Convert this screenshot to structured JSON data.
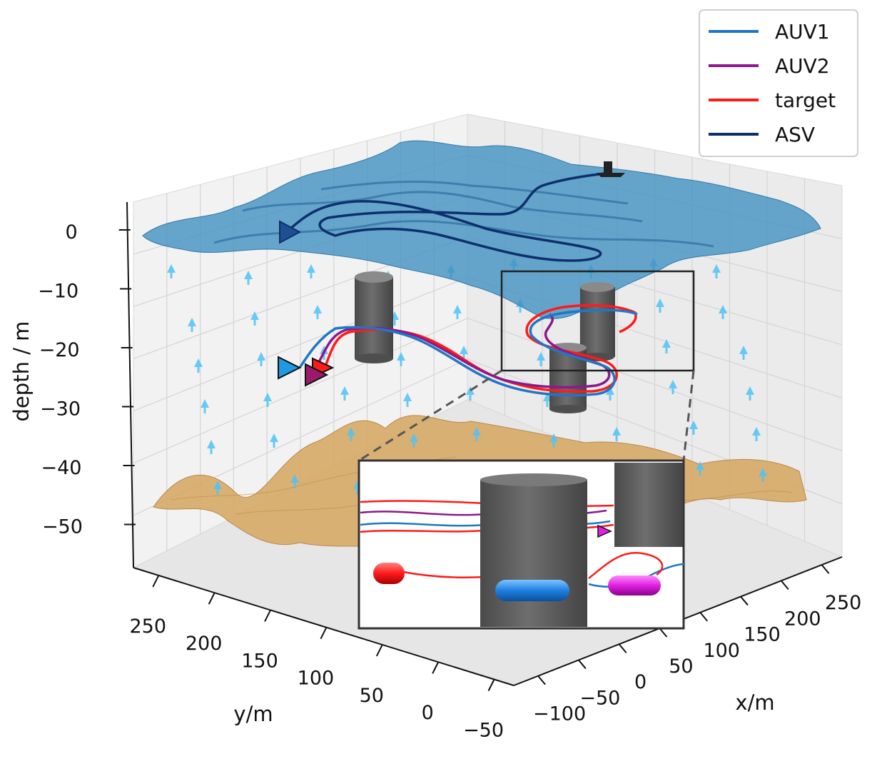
{
  "chart_data": {
    "type": "line",
    "projection": "3d",
    "title": "",
    "xlabel": "x/m",
    "ylabel": "y/m",
    "zlabel": "depth / m",
    "x_ticks": [
      "−100",
      "−50",
      "0",
      "50",
      "100",
      "150",
      "200",
      "250"
    ],
    "y_ticks": [
      "−50",
      "0",
      "50",
      "100",
      "150",
      "200",
      "250"
    ],
    "z_ticks": [
      "0",
      "−10",
      "−20",
      "−30",
      "−40",
      "−50"
    ],
    "xlim": [
      -100,
      250
    ],
    "ylim": [
      -50,
      250
    ],
    "zlim": [
      -55,
      5
    ],
    "grid": true,
    "legend_position": "top-right",
    "series": [
      {
        "name": "AUV1",
        "color": "#1f77c4"
      },
      {
        "name": "AUV2",
        "color": "#8b1a8b"
      },
      {
        "name": "target",
        "color": "#ff1a1a"
      },
      {
        "name": "ASV",
        "color": "#0d2f6e"
      }
    ],
    "surfaces": [
      {
        "kind": "sea-surface",
        "depth": 0,
        "color": "#3f8fc0"
      },
      {
        "kind": "seabed",
        "depth": -45,
        "color": "#d4a25a"
      }
    ],
    "obstacles": [
      {
        "kind": "cylinder",
        "color": "#5e5e5e"
      },
      {
        "kind": "cylinder",
        "color": "#5e5e5e"
      },
      {
        "kind": "cylinder",
        "color": "#5e5e5e"
      }
    ],
    "current_field": {
      "kind": "vector-arrows",
      "color": "#4fc3f7"
    },
    "inset": {
      "kind": "zoom",
      "shows": [
        "target",
        "AUV1",
        "AUV2",
        "obstacles"
      ]
    }
  }
}
